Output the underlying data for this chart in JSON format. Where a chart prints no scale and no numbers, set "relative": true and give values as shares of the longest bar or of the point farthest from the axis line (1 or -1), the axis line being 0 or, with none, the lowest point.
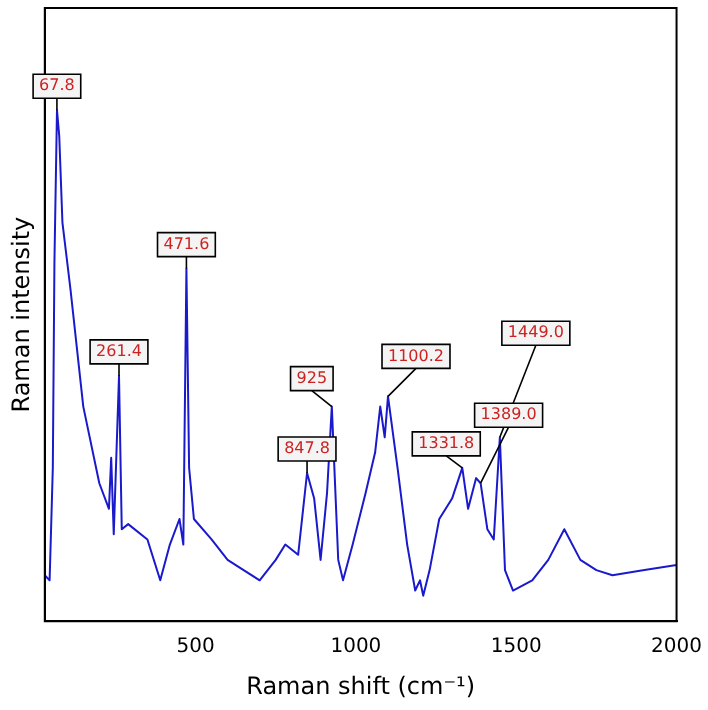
{
  "chart_data": {
    "type": "line",
    "xlabel": "Raman shift (cm⁻¹)",
    "ylabel": "Raman intensity",
    "relative": true,
    "grid": false,
    "legend": false,
    "marker": "none",
    "line_style": "solid",
    "xlim": [
      30,
      2000
    ],
    "xticks": [
      500,
      1000,
      1500,
      2000
    ],
    "series": [
      {
        "color": "#1a1acc",
        "x": [
          30,
          45,
          55,
          60,
          68,
          75,
          85,
          110,
          150,
          200,
          230,
          237,
          245,
          261.4,
          270,
          290,
          350,
          390,
          420,
          450,
          462,
          471.6,
          480,
          495,
          550,
          600,
          650,
          700,
          750,
          780,
          820,
          847.8,
          870,
          890,
          910,
          925,
          945,
          960,
          990,
          1030,
          1060,
          1076,
          1090,
          1100.2,
          1130,
          1160,
          1185,
          1200,
          1210,
          1230,
          1260,
          1300,
          1331.8,
          1350,
          1375,
          1389,
          1410,
          1430,
          1449,
          1465,
          1490,
          1550,
          1600,
          1650,
          1700,
          1750,
          1800,
          1900,
          2000
        ],
        "values": [
          0.09,
          0.08,
          0.3,
          0.7,
          1.0,
          0.95,
          0.78,
          0.65,
          0.42,
          0.27,
          0.22,
          0.32,
          0.17,
          0.48,
          0.18,
          0.19,
          0.16,
          0.08,
          0.15,
          0.2,
          0.15,
          0.69,
          0.3,
          0.2,
          0.16,
          0.12,
          0.1,
          0.08,
          0.12,
          0.15,
          0.13,
          0.29,
          0.24,
          0.12,
          0.25,
          0.42,
          0.12,
          0.08,
          0.15,
          0.25,
          0.33,
          0.42,
          0.36,
          0.44,
          0.3,
          0.15,
          0.06,
          0.08,
          0.05,
          0.1,
          0.2,
          0.24,
          0.3,
          0.22,
          0.28,
          0.27,
          0.18,
          0.16,
          0.36,
          0.1,
          0.06,
          0.08,
          0.12,
          0.18,
          0.12,
          0.1,
          0.09,
          0.1,
          0.11
        ]
      }
    ],
    "annotations": [
      {
        "text": "67.8",
        "x": 67.8,
        "y": 1.0
      },
      {
        "text": "261.4",
        "x": 261.4,
        "y": 0.48
      },
      {
        "text": "471.6",
        "x": 471.6,
        "y": 0.69
      },
      {
        "text": "847.8",
        "x": 847.8,
        "y": 0.29
      },
      {
        "text": "925",
        "x": 925,
        "y": 0.42
      },
      {
        "text": "1100.2",
        "x": 1100.2,
        "y": 0.44
      },
      {
        "text": "1331.8",
        "x": 1331.8,
        "y": 0.3
      },
      {
        "text": "1389.0",
        "x": 1389,
        "y": 0.27
      },
      {
        "text": "1449.0",
        "x": 1449,
        "y": 0.36
      }
    ]
  }
}
